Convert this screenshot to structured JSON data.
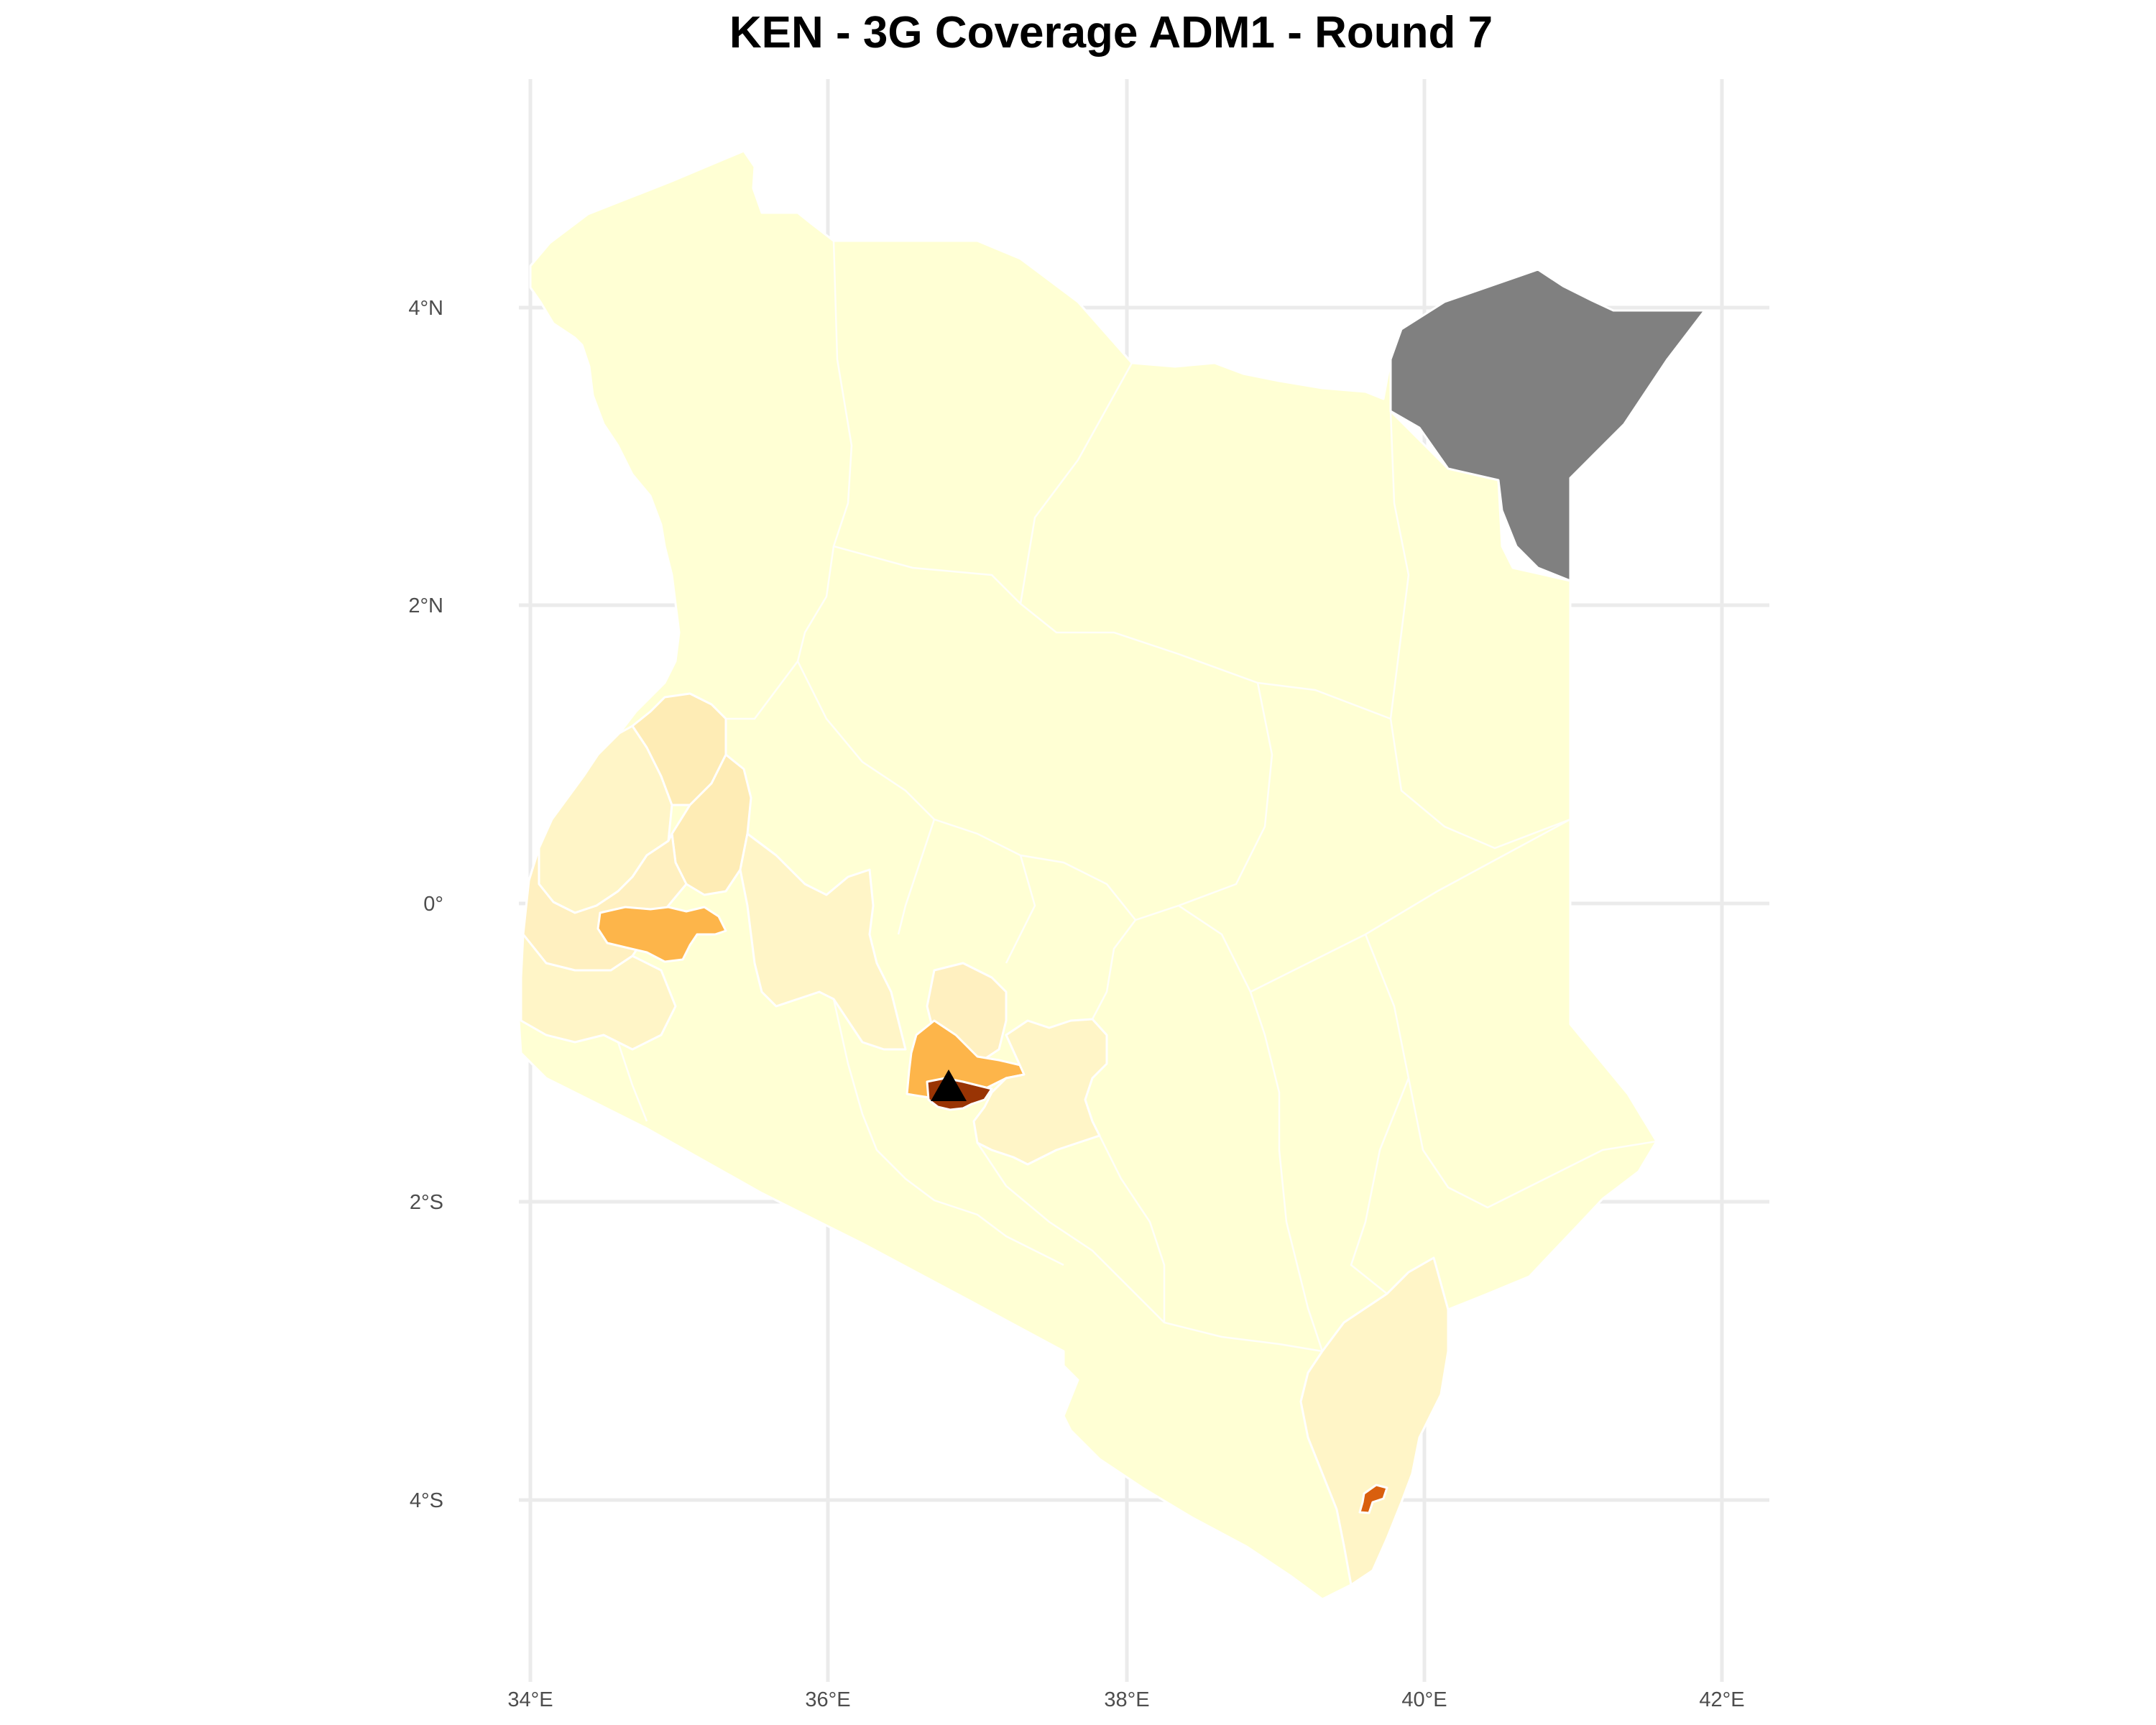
{
  "title": "KEN - 3G Coverage ADM1 - Round 7",
  "axes": {
    "x_ticks": [
      "34°E",
      "36°E",
      "38°E",
      "40°E",
      "42°E"
    ],
    "y_ticks": [
      "4°N",
      "2°N",
      "0°",
      "2°S",
      "4°S"
    ]
  },
  "colors": {
    "very_low": "#ffffd4",
    "low": "#fff5c7",
    "low_mid": "#fff0c0",
    "mid_low": "#feecb5",
    "mid": "#fdb54a",
    "mid_high": "#d95f0e",
    "high": "#993404",
    "no_data": "#808080",
    "marker": "#000000"
  },
  "map": {
    "country": "KEN",
    "marker_icon": "triangle-marker-icon"
  }
}
